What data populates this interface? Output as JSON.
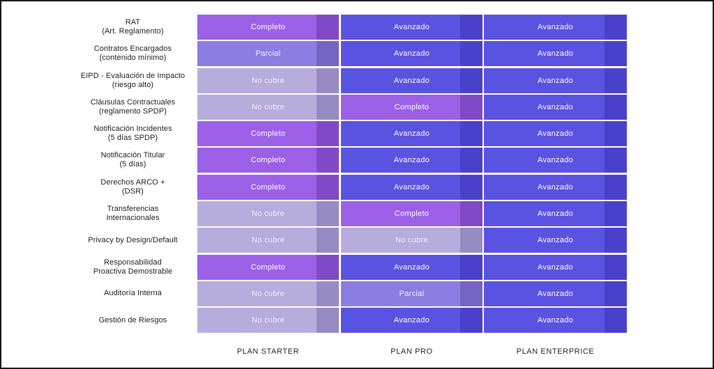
{
  "chart_data": {
    "type": "table",
    "title": "",
    "columns": [
      "PLAN STARTER",
      "PLAN PRO",
      "PLAN ENTERPRICE"
    ],
    "status_values": [
      "Completo",
      "Parcial",
      "No cubre",
      "Avanzado"
    ],
    "features": [
      {
        "lines": [
          "RAT",
          "(Art. Reglamento)"
        ],
        "values": [
          "Completo",
          "Avanzado",
          "Avanzado"
        ]
      },
      {
        "lines": [
          "Contratos Encargados",
          "(contenido mínimo)"
        ],
        "values": [
          "Parcial",
          "Avanzado",
          "Avanzado"
        ]
      },
      {
        "lines": [
          "EIPD - Evaluación de Impacto",
          "(riesgo alto)"
        ],
        "values": [
          "No cubre",
          "Avanzado",
          "Avanzado"
        ]
      },
      {
        "lines": [
          "Cláusulas Contractuales",
          "(reglamento SPDP)"
        ],
        "values": [
          "No cubre",
          "Completo",
          "Avanzado"
        ]
      },
      {
        "lines": [
          "Notificación Incidentes",
          "(5 días SPDP)"
        ],
        "values": [
          "Completo",
          "Avanzado",
          "Avanzado"
        ]
      },
      {
        "lines": [
          "Notificación Titular",
          "(5 días)"
        ],
        "values": [
          "Completo",
          "Avanzado",
          "Avanzado"
        ]
      },
      {
        "lines": [
          "Derechos ARCO +",
          "(DSR)"
        ],
        "values": [
          "Completo",
          "Avanzado",
          "Avanzado"
        ]
      },
      {
        "lines": [
          "Transferencias",
          "Internacionales"
        ],
        "values": [
          "No cubre",
          "Completo",
          "Avanzado"
        ]
      },
      {
        "lines": [
          "Privacy by Design/Default"
        ],
        "values": [
          "No cubre",
          "No cubre",
          "Avanzado"
        ]
      },
      {
        "lines": [
          "Responsabilidad",
          "Proactiva Demostrable"
        ],
        "values": [
          "Completo",
          "Avanzado",
          "Avanzado"
        ]
      },
      {
        "lines": [
          "Auditoría Interna"
        ],
        "values": [
          "No cubre",
          "Parcial",
          "Avanzado"
        ]
      },
      {
        "lines": [
          "Gestión de Riesgos"
        ],
        "values": [
          "No cubre",
          "Avanzado",
          "Avanzado"
        ]
      }
    ]
  },
  "status_styles": {
    "Completo": {
      "bg": "#9c60e6",
      "strip": "#8049c8",
      "text": "#ffffff"
    },
    "Parcial": {
      "bg": "#8a7ee2",
      "strip": "#7465c4",
      "text": "#f3f1fb"
    },
    "No cubre": {
      "bg": "#b7addd",
      "strip": "#988bc4",
      "text": "#f0ecfa"
    },
    "Avanzado": {
      "bg": "#5a52e0",
      "strip": "#4a41cb",
      "text": "#ffffff"
    }
  },
  "frame": {
    "border_color": "#161616",
    "background": "#ffffff"
  }
}
